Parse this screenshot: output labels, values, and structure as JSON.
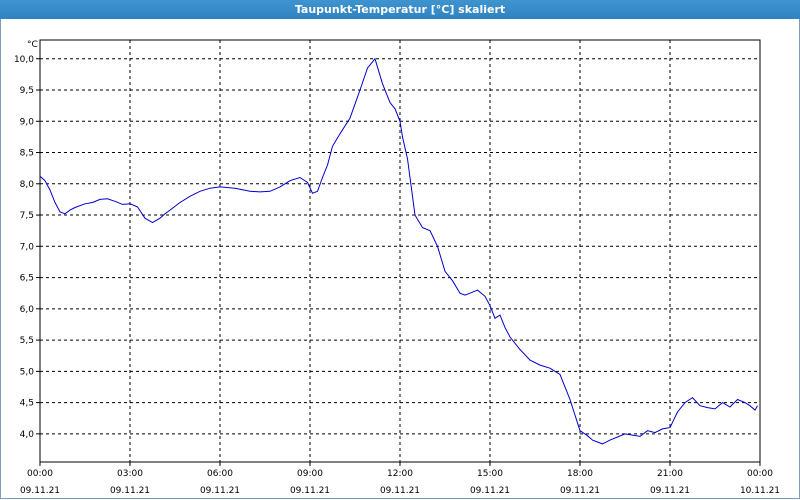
{
  "window": {
    "title": "Taupunkt-Temperatur [°C] skaliert"
  },
  "chart_data": {
    "type": "line",
    "title": "Taupunkt-Temperatur [°C] skaliert",
    "ylabel": "°C",
    "xlabel": "",
    "ylim": [
      3.55,
      10.3
    ],
    "yticks": [
      "10,0",
      "9,5",
      "9,0",
      "8,5",
      "8,0",
      "7,5",
      "7,0",
      "6,5",
      "6,0",
      "5,5",
      "5,0",
      "4,5",
      "4,0"
    ],
    "xticks": [
      {
        "time": "00:00",
        "date": "09.11.21"
      },
      {
        "time": "03:00",
        "date": "09.11.21"
      },
      {
        "time": "06:00",
        "date": "09.11.21"
      },
      {
        "time": "09:00",
        "date": "09.11.21"
      },
      {
        "time": "12:00",
        "date": "09.11.21"
      },
      {
        "time": "15:00",
        "date": "09.11.21"
      },
      {
        "time": "18:00",
        "date": "09.11.21"
      },
      {
        "time": "21:00",
        "date": "09.11.21"
      },
      {
        "time": "00:00",
        "date": "10.11.21"
      }
    ],
    "grid": true,
    "line_color": "#0000cc",
    "series": [
      {
        "x": [
          "00:00",
          "00:10",
          "00:20",
          "00:30",
          "00:40",
          "00:50",
          "01:00",
          "01:10",
          "01:30",
          "01:45",
          "02:00",
          "02:15",
          "02:30",
          "02:45",
          "03:00",
          "03:15",
          "03:30",
          "03:45",
          "04:00",
          "04:10",
          "04:20",
          "04:40",
          "05:00",
          "05:20",
          "05:40",
          "06:00",
          "06:30",
          "07:00",
          "07:20",
          "07:40",
          "08:00",
          "08:20",
          "08:40",
          "08:55",
          "09:05",
          "09:15",
          "09:25",
          "09:35",
          "09:45",
          "10:00",
          "10:20",
          "10:40",
          "10:55",
          "11:10",
          "11:25",
          "11:40",
          "11:50",
          "12:00",
          "12:05",
          "12:15",
          "12:30",
          "12:45",
          "13:00",
          "13:15",
          "13:30",
          "13:45",
          "14:00",
          "14:10",
          "14:20",
          "14:35",
          "14:50",
          "15:00",
          "15:10",
          "15:20",
          "15:30",
          "15:40",
          "16:00",
          "16:20",
          "16:40",
          "17:00",
          "17:20",
          "17:40",
          "18:00",
          "18:15",
          "18:25",
          "18:35",
          "18:45",
          "19:00",
          "19:15",
          "19:30",
          "19:45",
          "20:00",
          "20:15",
          "20:30",
          "20:45",
          "21:00",
          "21:15",
          "21:30",
          "21:45",
          "22:00",
          "22:15",
          "22:30",
          "22:45",
          "23:00",
          "23:15",
          "23:30",
          "23:40",
          "23:50",
          "23:55"
        ],
        "values": [
          8.12,
          8.05,
          7.9,
          7.7,
          7.55,
          7.52,
          7.58,
          7.62,
          7.68,
          7.7,
          7.75,
          7.76,
          7.72,
          7.67,
          7.68,
          7.63,
          7.45,
          7.38,
          7.45,
          7.52,
          7.58,
          7.7,
          7.8,
          7.88,
          7.93,
          7.95,
          7.93,
          7.88,
          7.87,
          7.88,
          7.95,
          8.05,
          8.1,
          8.02,
          7.85,
          7.88,
          8.1,
          8.3,
          8.6,
          8.8,
          9.05,
          9.5,
          9.85,
          10.0,
          9.6,
          9.3,
          9.2,
          9.0,
          8.75,
          8.4,
          7.5,
          7.3,
          7.25,
          7.0,
          6.6,
          6.45,
          6.25,
          6.22,
          6.25,
          6.3,
          6.2,
          6.05,
          5.85,
          5.9,
          5.7,
          5.55,
          5.35,
          5.18,
          5.1,
          5.05,
          4.95,
          4.55,
          4.05,
          3.97,
          3.9,
          3.87,
          3.84,
          3.9,
          3.95,
          4.0,
          3.98,
          3.96,
          4.05,
          4.02,
          4.08,
          4.1,
          4.35,
          4.5,
          4.58,
          4.45,
          4.42,
          4.4,
          4.5,
          4.43,
          4.55,
          4.5,
          4.45,
          4.38,
          4.45
        ]
      }
    ]
  }
}
